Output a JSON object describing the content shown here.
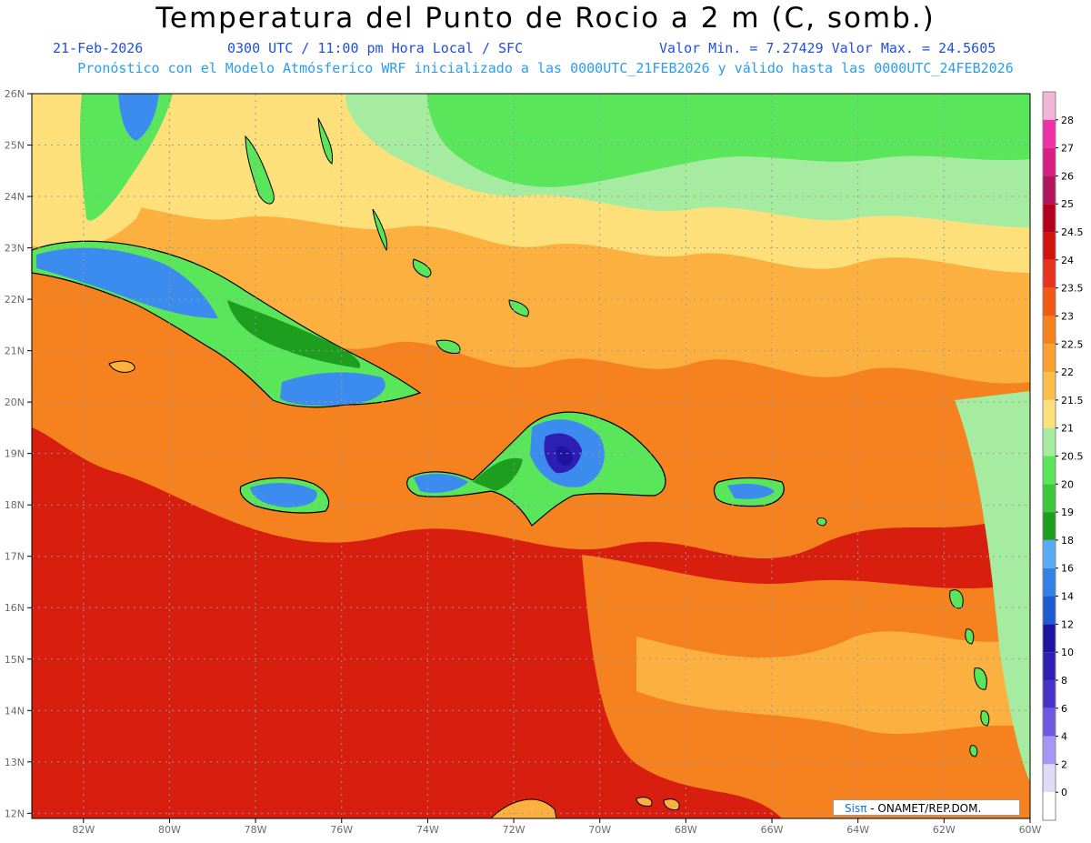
{
  "header": {
    "title": "Temperatura del Punto de Rocio a 2 m (C, somb.)",
    "date": "21-Feb-2026",
    "time": "0300 UTC / 11:00 pm Hora Local / SFC",
    "min_max": "Valor Min. = 7.27429  Valor Max. = 24.5605",
    "model_info": "Pronóstico con el Modelo Atmósferico WRF inicializado a las 0000UTC_21FEB2026 y válido hasta las  0000UTC_24FEB2026"
  },
  "credit": {
    "logo": "Sisπ",
    "text": " - ONAMET/REP.DOM."
  },
  "axes": {
    "x_ticks": [
      "82W",
      "80W",
      "78W",
      "76W",
      "74W",
      "72W",
      "70W",
      "68W",
      "66W",
      "64W",
      "62W",
      "60W"
    ],
    "y_ticks": [
      "26N",
      "25N",
      "24N",
      "23N",
      "22N",
      "21N",
      "20N",
      "19N",
      "18N",
      "17N",
      "16N",
      "15N",
      "14N",
      "13N",
      "12N"
    ],
    "lon_range": [
      -83.2,
      -60
    ],
    "lat_range": [
      11.9,
      26
    ],
    "grid": true
  },
  "colorbar": {
    "labels": [
      "28",
      "27",
      "26",
      "25",
      "24.5",
      "24",
      "23.5",
      "23",
      "22.5",
      "22",
      "21.5",
      "21",
      "20.5",
      "20",
      "19",
      "18",
      "16",
      "14",
      "12",
      "10",
      "8",
      "6",
      "4",
      "2",
      "0"
    ],
    "colors": [
      "#f4b6d8",
      "#f032a8",
      "#d81e82",
      "#b0145a",
      "#b4001e",
      "#d2140f",
      "#e6321e",
      "#f05a14",
      "#f5821e",
      "#faa032",
      "#fcbe4a",
      "#fde07a",
      "#a6eca0",
      "#5ae65a",
      "#3cc83c",
      "#1e9e1e",
      "#5aaaf5",
      "#3282e6",
      "#1e5ad2",
      "#1e14a0",
      "#2d1eb4",
      "#4632c8",
      "#6e5ae0",
      "#a696f5",
      "#dcdcf5",
      "#ffffff"
    ]
  },
  "colors": {
    "red": "#d81e0f",
    "orange": "#f5821e",
    "light_orange": "#fbb040",
    "yellow": "#fde07a",
    "light_green": "#a6eca0",
    "green": "#5ae65a",
    "dark_green": "#1e9e1e",
    "blue": "#3c8cf0",
    "dark_blue": "#2d1eb4"
  },
  "map": {
    "region": "Caribbean",
    "min_value_c": 7.27429,
    "max_value_c": 24.5605
  }
}
